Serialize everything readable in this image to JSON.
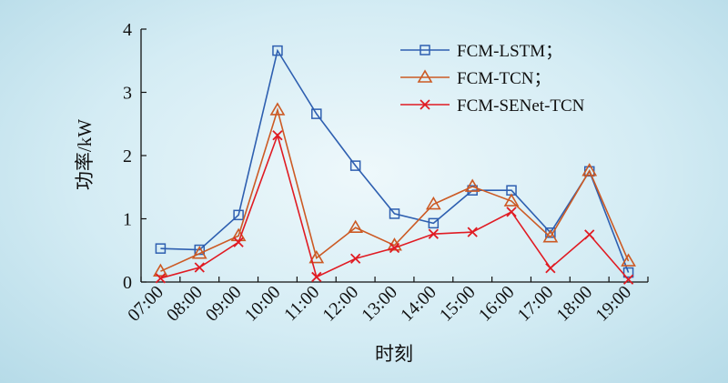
{
  "chart_data": {
    "type": "line",
    "xlabel": "时刻",
    "ylabel": "功率/kW",
    "ylim": [
      0,
      4
    ],
    "yticks": [
      0,
      1,
      2,
      3,
      4
    ],
    "categories": [
      "07:00",
      "08:00",
      "09:00",
      "10:00",
      "11:00",
      "12:00",
      "13:00",
      "14:00",
      "15:00",
      "16:00",
      "17:00",
      "18:00",
      "19:00"
    ],
    "grid": false,
    "legend_position": "top-right",
    "series": [
      {
        "name": "FCM-LSTM；",
        "color": "#2e5fb0",
        "marker": "square",
        "values": [
          0.53,
          0.51,
          1.06,
          3.66,
          2.66,
          1.84,
          1.08,
          0.93,
          1.45,
          1.45,
          0.78,
          1.75,
          0.15
        ]
      },
      {
        "name": "FCM-TCN；",
        "color": "#cc5a24",
        "marker": "triangle",
        "values": [
          0.17,
          0.45,
          0.73,
          2.72,
          0.38,
          0.86,
          0.58,
          1.23,
          1.51,
          1.28,
          0.71,
          1.76,
          0.33
        ]
      },
      {
        "name": "FCM-SENet-TCN",
        "color": "#e01b23",
        "marker": "x",
        "values": [
          0.06,
          0.23,
          0.63,
          2.32,
          0.08,
          0.37,
          0.54,
          0.76,
          0.79,
          1.11,
          0.22,
          0.75,
          0.04
        ]
      }
    ]
  }
}
